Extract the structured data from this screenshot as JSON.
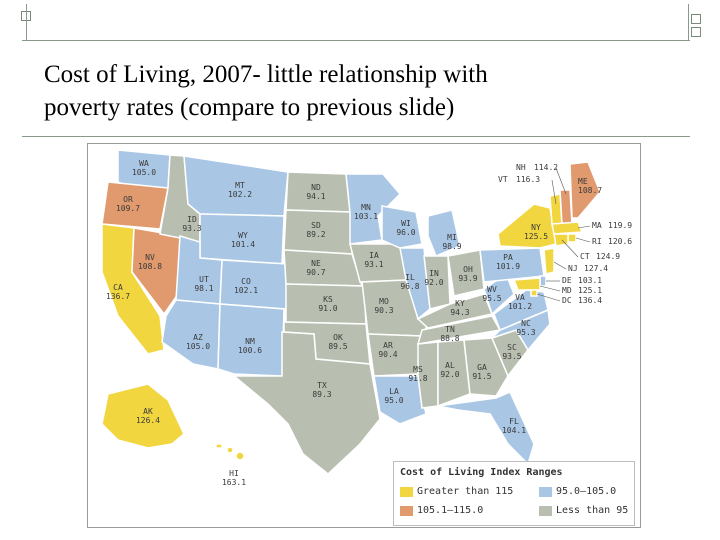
{
  "slide": {
    "title_line1": "Cost of Living, 2007- little relationship with",
    "title_line2": "poverty rates (compare to previous slide)"
  },
  "colors": {
    "greater_than_115": "#f2d640",
    "range_105_1_115": "#e09a6e",
    "range_95_105": "#a9c7e5",
    "less_than_95": "#b9bfb0",
    "border": "#ffffff",
    "decor": "#7a8a7a"
  },
  "legend": {
    "title": "Cost of Living Index Ranges",
    "items": [
      {
        "label": "Greater than 115",
        "category": "gt115"
      },
      {
        "label": "95.0–105.0",
        "category": "r95"
      },
      {
        "label": "105.1–115.0",
        "category": "r105"
      },
      {
        "label": "Less than 95",
        "category": "lt95"
      }
    ]
  },
  "states": [
    {
      "code": "WA",
      "value": "105.0",
      "category": "r95"
    },
    {
      "code": "OR",
      "value": "109.7",
      "category": "r105"
    },
    {
      "code": "CA",
      "value": "136.7",
      "category": "gt115"
    },
    {
      "code": "NV",
      "value": "108.8",
      "category": "r105"
    },
    {
      "code": "ID",
      "value": "93.3",
      "category": "lt95"
    },
    {
      "code": "MT",
      "value": "102.2",
      "category": "r95"
    },
    {
      "code": "WY",
      "value": "101.4",
      "category": "r95"
    },
    {
      "code": "UT",
      "value": "98.1",
      "category": "r95"
    },
    {
      "code": "CO",
      "value": "102.1",
      "category": "r95"
    },
    {
      "code": "AZ",
      "value": "105.0",
      "category": "r95"
    },
    {
      "code": "NM",
      "value": "100.6",
      "category": "r95"
    },
    {
      "code": "ND",
      "value": "94.1",
      "category": "lt95"
    },
    {
      "code": "SD",
      "value": "89.2",
      "category": "lt95"
    },
    {
      "code": "NE",
      "value": "90.7",
      "category": "lt95"
    },
    {
      "code": "KS",
      "value": "91.0",
      "category": "lt95"
    },
    {
      "code": "OK",
      "value": "89.5",
      "category": "lt95"
    },
    {
      "code": "TX",
      "value": "89.3",
      "category": "lt95"
    },
    {
      "code": "MN",
      "value": "103.1",
      "category": "r95"
    },
    {
      "code": "IA",
      "value": "93.1",
      "category": "lt95"
    },
    {
      "code": "MO",
      "value": "90.3",
      "category": "lt95"
    },
    {
      "code": "AR",
      "value": "90.4",
      "category": "lt95"
    },
    {
      "code": "LA",
      "value": "95.0",
      "category": "r95"
    },
    {
      "code": "WI",
      "value": "96.0",
      "category": "r95"
    },
    {
      "code": "IL",
      "value": "96.8",
      "category": "r95"
    },
    {
      "code": "MI",
      "value": "98.9",
      "category": "r95"
    },
    {
      "code": "IN",
      "value": "92.0",
      "category": "lt95"
    },
    {
      "code": "OH",
      "value": "93.9",
      "category": "lt95"
    },
    {
      "code": "KY",
      "value": "94.3",
      "category": "lt95"
    },
    {
      "code": "TN",
      "value": "88.8",
      "category": "lt95"
    },
    {
      "code": "MS",
      "value": "91.8",
      "category": "lt95"
    },
    {
      "code": "AL",
      "value": "92.0",
      "category": "lt95"
    },
    {
      "code": "GA",
      "value": "91.5",
      "category": "lt95"
    },
    {
      "code": "FL",
      "value": "104.1",
      "category": "r95"
    },
    {
      "code": "SC",
      "value": "93.5",
      "category": "lt95"
    },
    {
      "code": "NC",
      "value": "95.3",
      "category": "r95"
    },
    {
      "code": "VA",
      "value": "101.2",
      "category": "r95"
    },
    {
      "code": "WV",
      "value": "95.5",
      "category": "r95"
    },
    {
      "code": "PA",
      "value": "101.9",
      "category": "r95"
    },
    {
      "code": "NY",
      "value": "125.5",
      "category": "gt115"
    },
    {
      "code": "VT",
      "value": "116.3",
      "category": "gt115"
    },
    {
      "code": "NH",
      "value": "114.2",
      "category": "r105"
    },
    {
      "code": "ME",
      "value": "108.7",
      "category": "r105"
    },
    {
      "code": "MA",
      "value": "119.9",
      "category": "gt115"
    },
    {
      "code": "RI",
      "value": "120.6",
      "category": "gt115"
    },
    {
      "code": "CT",
      "value": "124.9",
      "category": "gt115"
    },
    {
      "code": "NJ",
      "value": "127.4",
      "category": "gt115"
    },
    {
      "code": "DE",
      "value": "103.1",
      "category": "r95"
    },
    {
      "code": "MD",
      "value": "125.1",
      "category": "gt115"
    },
    {
      "code": "DC",
      "value": "136.4",
      "category": "gt115"
    },
    {
      "code": "AK",
      "value": "126.4",
      "category": "gt115"
    },
    {
      "code": "HI",
      "value": "163.1",
      "category": "gt115"
    }
  ]
}
